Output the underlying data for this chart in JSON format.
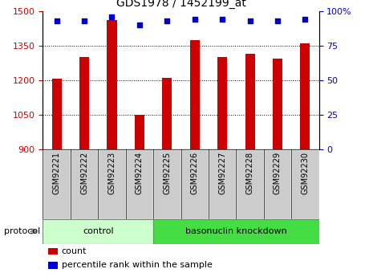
{
  "title": "GDS1978 / 1452199_at",
  "samples": [
    "GSM92221",
    "GSM92222",
    "GSM92223",
    "GSM92224",
    "GSM92225",
    "GSM92226",
    "GSM92227",
    "GSM92228",
    "GSM92229",
    "GSM92230"
  ],
  "counts": [
    1207,
    1302,
    1462,
    1052,
    1210,
    1375,
    1302,
    1315,
    1295,
    1360
  ],
  "percentile_ranks": [
    93,
    93,
    96,
    90,
    93,
    94,
    94,
    93,
    93,
    94
  ],
  "ylim_left": [
    900,
    1500
  ],
  "ylim_right": [
    0,
    100
  ],
  "yticks_left": [
    900,
    1050,
    1200,
    1350,
    1500
  ],
  "yticks_right": [
    0,
    25,
    50,
    75,
    100
  ],
  "ylabel_right_labels": [
    "0",
    "25",
    "50",
    "75",
    "100%"
  ],
  "bar_color": "#cc0000",
  "dot_color": "#0000cc",
  "bar_width": 0.35,
  "groups": [
    {
      "label": "control",
      "start": 0,
      "end": 3,
      "color": "#ccffcc"
    },
    {
      "label": "basonuclin knockdown",
      "start": 4,
      "end": 9,
      "color": "#44dd44"
    }
  ],
  "protocol_label": "protocol",
  "legend_items": [
    {
      "label": "count",
      "color": "#cc0000"
    },
    {
      "label": "percentile rank within the sample",
      "color": "#0000cc"
    }
  ],
  "tick_color_left": "#cc0000",
  "tick_color_right": "#0000cc",
  "sample_box_color": "#cccccc",
  "grid_linestyle": "dotted",
  "grid_color": "#000000",
  "background_color": "#ffffff"
}
